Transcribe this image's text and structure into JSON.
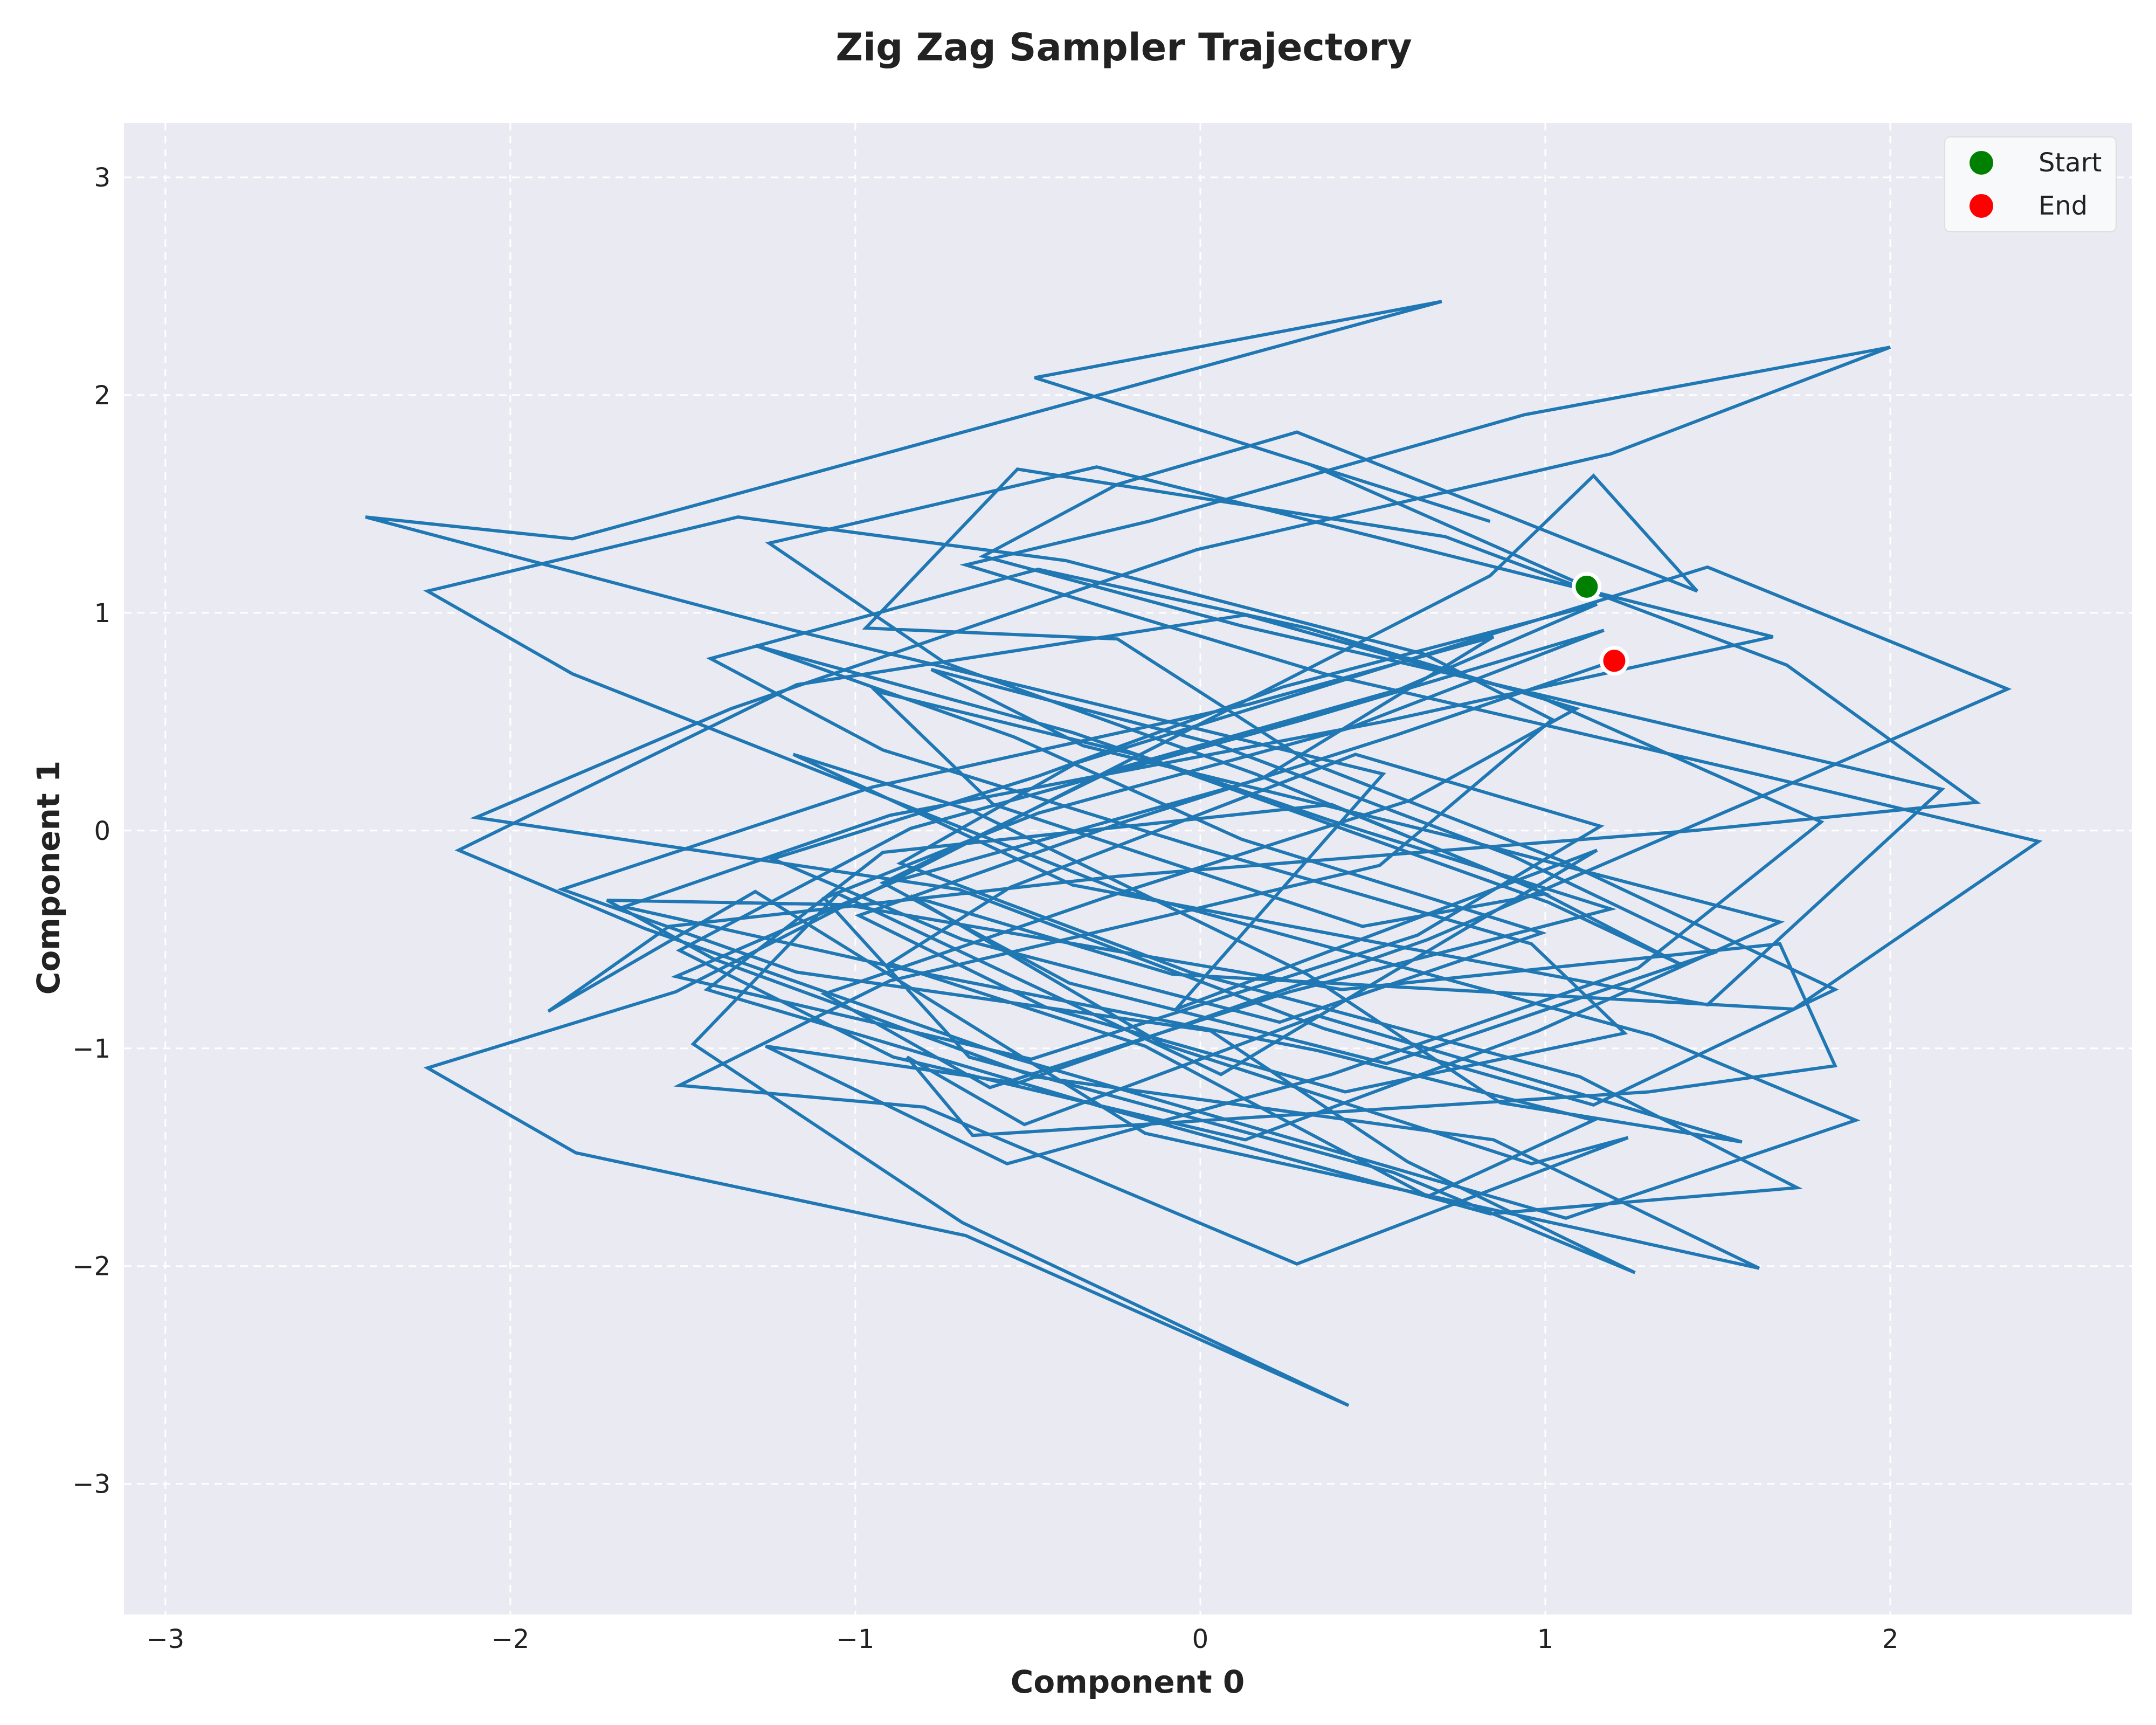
{
  "chart_data": {
    "type": "line",
    "title": "Zig Zag Sampler Trajectory",
    "xlabel": "Component 0",
    "ylabel": "Component 1",
    "xlim": [
      -3.12,
      2.7
    ],
    "ylim": [
      -3.6,
      3.25
    ],
    "x_ticks": [
      -3,
      -2,
      -1,
      0,
      1,
      2
    ],
    "y_ticks": [
      -3,
      -2,
      -1,
      0,
      1,
      2,
      3
    ],
    "x_tick_labels": [
      "−3",
      "−2",
      "−1",
      "0",
      "1",
      "2"
    ],
    "y_tick_labels": [
      "−3",
      "−2",
      "−1",
      "0",
      "1",
      "2",
      "3"
    ],
    "grid": true,
    "legend_position": "top-right",
    "colors": {
      "line": "#1f77b4",
      "start": "#008000",
      "end": "#ff0000",
      "plot_background": "#eaeaf2",
      "grid": "#ffffff"
    },
    "series": [
      {
        "x": [
          1.12,
          0.32,
          0.84,
          -0.48,
          0.7,
          -1.82,
          -2.42,
          -1.18,
          0.53,
          -0.07,
          1.15,
          0.06,
          -1.05,
          -1.47,
          -0.69,
          0.43,
          -0.68,
          -1.81,
          -2.24,
          -1.52,
          0.84,
          1.14,
          1.44,
          0.28,
          -0.24,
          -0.63,
          0.12,
          0.78,
          2.15,
          1.47,
          -0.37,
          -1.18,
          -0.66,
          0.31,
          0.87,
          1.57,
          0.34,
          -0.51,
          -0.85,
          -0.66,
          1.3,
          1.84,
          1.68,
          0.41,
          -1.03,
          -1.72,
          -1.41,
          -0.48,
          0.85,
          1.62,
          -0.16,
          -1.29,
          -1.89,
          -1.54,
          -0.24,
          1.43,
          2.25,
          1.7,
          0.71,
          -0.53,
          -0.97,
          -0.24,
          0.32,
          1.05,
          1.84,
          1.14,
          0.36,
          -0.7,
          -2.1,
          -1.36,
          -0.01,
          1.19,
          2.0,
          0.94,
          -0.15,
          -0.68,
          0.36,
          1.61,
          2.43,
          1.72,
          -0.08,
          -0.84,
          -0.11,
          0.96,
          1.24,
          0.28,
          -0.8,
          -1.51,
          -0.9,
          0.52,
          1.02,
          0.65,
          -0.39,
          -1.34,
          -2.24,
          -1.82,
          -0.24,
          1.31,
          1.9,
          1.06,
          -0.55,
          -1.61,
          -2.15,
          -1.17,
          0.13,
          0.99,
          1.8,
          1.27,
          0.38,
          -0.56,
          -1.26,
          -0.53,
          0.66,
          1.66,
          2.34,
          1.47,
          -0.36,
          -0.87,
          -0.03,
          1.1,
          1.73,
          0.84,
          -0.24,
          -1.43,
          -0.92,
          0.38,
          1.0,
          0.47,
          -0.6,
          -0.94,
          -0.19,
          1.01,
          1.4,
          0.96,
          0.16,
          -0.74,
          -1.25,
          -0.3,
          1.03,
          1.66,
          0.53,
          -0.9,
          -1.67,
          -0.82,
          0.34,
          1.14,
          0.66,
          -0.16,
          -0.9,
          -0.55,
          0.45,
          1.16,
          0.63,
          -0.49,
          -1.52,
          -0.88,
          0.18,
          0.85,
          0.14,
          -0.95,
          -1.85,
          -1.17,
          0.03,
          0.6,
          1.26,
          0.56,
          -0.67,
          -1.09,
          -0.47,
          0.43,
          1.17,
          0.3,
          -0.84,
          -1.51,
          -0.89,
          0.13,
          0.98,
          1.68,
          0.71,
          -0.34,
          -0.78,
          0.04,
          0.91,
          1.49,
          0.54,
          -0.38,
          -0.92,
          -0.25,
          0.58,
          1.15,
          0.24,
          -0.47,
          -1.24,
          -0.69,
          0.23,
          0.99,
          0.12,
          -0.54,
          -1.29,
          -0.37,
          0.37,
          1.19,
          0.26,
          -0.61,
          -1.09,
          -0.28,
          0.61,
          1.09,
          0.31,
          -0.47,
          -1.42,
          -0.92,
          0.0,
          0.96,
          1.23,
          0.42,
          -0.45,
          -0.99,
          -0.24,
          0.57,
          1.2
        ],
        "y": [
          1.12,
          1.68,
          1.42,
          2.08,
          2.43,
          1.34,
          1.44,
          0.92,
          0.26,
          -0.82,
          -0.09,
          -1.12,
          -0.29,
          -0.98,
          -1.8,
          -2.64,
          -1.86,
          -1.48,
          -1.09,
          -0.74,
          1.17,
          1.63,
          1.1,
          1.83,
          1.59,
          1.26,
          0.94,
          0.7,
          0.19,
          -0.8,
          -0.25,
          0.35,
          0.09,
          -0.66,
          -1.25,
          -1.43,
          -0.85,
          -1.35,
          -1.04,
          -1.4,
          -1.2,
          -1.08,
          -0.52,
          -0.73,
          -0.34,
          -0.32,
          -0.59,
          -1.13,
          -1.42,
          -2.01,
          -1.39,
          -0.28,
          -0.83,
          -0.44,
          -0.21,
          0.0,
          0.13,
          0.76,
          1.35,
          1.66,
          0.93,
          0.88,
          0.31,
          -0.14,
          -0.73,
          -1.26,
          -0.91,
          -0.27,
          0.06,
          0.56,
          1.29,
          1.73,
          2.22,
          1.91,
          1.42,
          1.22,
          0.72,
          0.26,
          -0.05,
          -0.82,
          -0.66,
          -0.3,
          -0.98,
          -1.53,
          -1.41,
          -1.99,
          -1.27,
          -1.17,
          -0.69,
          -0.16,
          0.51,
          0.81,
          1.24,
          1.44,
          1.1,
          0.72,
          -0.27,
          -0.94,
          -1.33,
          -1.78,
          -1.04,
          -0.45,
          -0.09,
          0.67,
          0.99,
          0.61,
          0.04,
          -0.63,
          -1.12,
          -1.53,
          -0.99,
          -1.16,
          -0.5,
          0.18,
          0.65,
          1.21,
          0.31,
          -0.15,
          -0.65,
          -1.13,
          -1.64,
          -1.76,
          -1.29,
          -0.73,
          -0.1,
          0.12,
          -0.29,
          -0.44,
          0.12,
          0.64,
          0.35,
          -0.33,
          -0.62,
          -0.26,
          0.26,
          0.77,
          1.32,
          1.67,
          1.14,
          0.89,
          0.5,
          0.07,
          -0.35,
          -0.65,
          -1.01,
          -1.33,
          -1.68,
          -0.99,
          -0.61,
          -0.26,
          0.35,
          0.02,
          -0.48,
          -1.05,
          -0.67,
          -0.23,
          0.24,
          0.89,
          0.58,
          0.2,
          -0.27,
          -0.65,
          -0.92,
          -1.52,
          -2.03,
          -1.57,
          -1.04,
          -0.31,
          0.08,
          0.47,
          0.92,
          0.51,
          0.01,
          -0.55,
          -1.04,
          -1.42,
          -0.92,
          -0.42,
          -0.02,
          0.39,
          0.74,
          0.4,
          -0.12,
          -0.56,
          -1.07,
          -0.7,
          -0.24,
          0.28,
          0.65,
          1.04,
          0.66,
          0.25,
          -0.13,
          -0.5,
          -0.88,
          -0.47,
          -0.04,
          0.43,
          0.85,
          0.45,
          0.05,
          -0.36,
          -0.74,
          -1.18,
          -0.75,
          -0.31,
          0.14,
          0.56,
          0.93,
          1.2,
          0.79,
          0.37,
          -0.08,
          -0.52,
          -0.93,
          -1.2,
          -0.81,
          -0.39,
          0.03,
          0.44,
          0.78
        ]
      }
    ],
    "legend": [
      {
        "label": "Start",
        "x": 1.12,
        "y": 1.12
      },
      {
        "label": "End",
        "x": 1.2,
        "y": 0.78
      }
    ]
  }
}
